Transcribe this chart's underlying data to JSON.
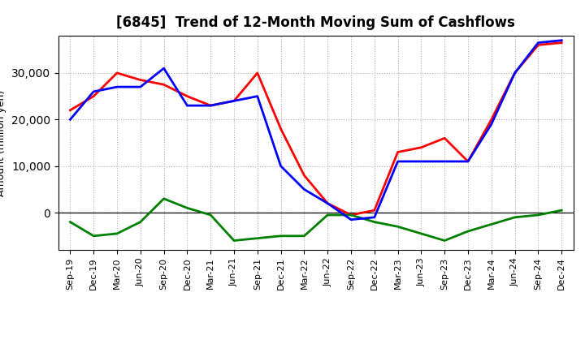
{
  "title": "[6845]  Trend of 12-Month Moving Sum of Cashflows",
  "ylabel": "Amount (million yen)",
  "labels": [
    "Sep-19",
    "Dec-19",
    "Mar-20",
    "Jun-20",
    "Sep-20",
    "Dec-20",
    "Mar-21",
    "Jun-21",
    "Sep-21",
    "Dec-21",
    "Mar-22",
    "Jun-22",
    "Sep-22",
    "Dec-22",
    "Mar-23",
    "Jun-23",
    "Sep-23",
    "Dec-23",
    "Mar-24",
    "Jun-24",
    "Sep-24",
    "Dec-24"
  ],
  "operating": [
    22000,
    25000,
    30000,
    28500,
    27500,
    25000,
    23000,
    24000,
    30000,
    18000,
    8000,
    2000,
    -500,
    500,
    13000,
    14000,
    16000,
    11000,
    20000,
    30000,
    36000,
    36500
  ],
  "investing": [
    -2000,
    -5000,
    -4500,
    -2000,
    3000,
    1000,
    -500,
    -6000,
    -5500,
    -5000,
    -5000,
    -500,
    -500,
    -2000,
    -3000,
    -4500,
    -6000,
    -4000,
    -2500,
    -1000,
    -500,
    500
  ],
  "free": [
    20000,
    26000,
    27000,
    27000,
    31000,
    23000,
    23000,
    24000,
    25000,
    10000,
    5000,
    2000,
    -1500,
    -1000,
    11000,
    11000,
    11000,
    11000,
    19000,
    30000,
    36500,
    37000
  ],
  "operating_color": "#ff0000",
  "investing_color": "#008000",
  "free_color": "#0000ff",
  "ylim": [
    -8000,
    38000
  ],
  "yticks": [
    0,
    10000,
    20000,
    30000
  ],
  "bg_color": "#ffffff",
  "grid_color": "#b0b0b0",
  "linewidth": 2.0
}
